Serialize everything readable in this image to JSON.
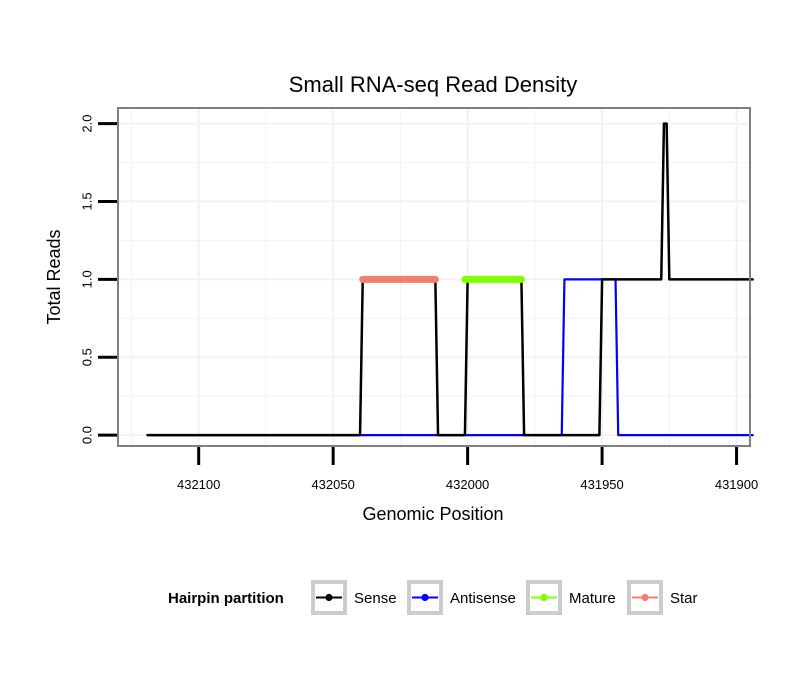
{
  "chart_data": {
    "type": "line",
    "title": "Small RNA-seq Read Density",
    "xlabel": "Genomic Position",
    "ylabel": "Total Reads",
    "xlim": [
      432130,
      431895
    ],
    "x_reversed": true,
    "ylim": [
      -0.07,
      2.1
    ],
    "x_ticks": [
      432100,
      432050,
      432000,
      431950,
      431900
    ],
    "x_tick_labels": [
      "432100",
      "432050",
      "432000",
      "431950",
      "431900"
    ],
    "y_ticks": [
      0.0,
      0.5,
      1.0,
      1.5,
      2.0
    ],
    "y_tick_labels": [
      "0.0",
      "0.5",
      "1.0",
      "1.5",
      "2.0"
    ],
    "grid": true,
    "legend_position": "bottom",
    "legend_title": "Hairpin partition",
    "series": [
      {
        "name": "Sense",
        "color": "#000000",
        "x": [
          432119,
          432040,
          432039,
          432012,
          432011,
          432001,
          432000,
          431980,
          431979,
          431951,
          431950,
          431928,
          431927,
          431926,
          431925,
          431894
        ],
        "y": [
          0,
          0,
          1,
          1,
          0,
          0,
          1,
          1,
          0,
          0,
          1,
          1,
          2,
          2,
          1,
          1
        ]
      },
      {
        "name": "Antisense",
        "color": "#0000ff",
        "x": [
          432119,
          431965,
          431964,
          431945,
          431944,
          431894
        ],
        "y": [
          0,
          0,
          1,
          1,
          0,
          0
        ]
      },
      {
        "name": "Mature",
        "color": "#7fff00",
        "x": [
          432001,
          431980
        ],
        "y": [
          1,
          1
        ]
      },
      {
        "name": "Star",
        "color": "#f08070",
        "x": [
          432039,
          432012
        ],
        "y": [
          1,
          1
        ]
      }
    ]
  }
}
